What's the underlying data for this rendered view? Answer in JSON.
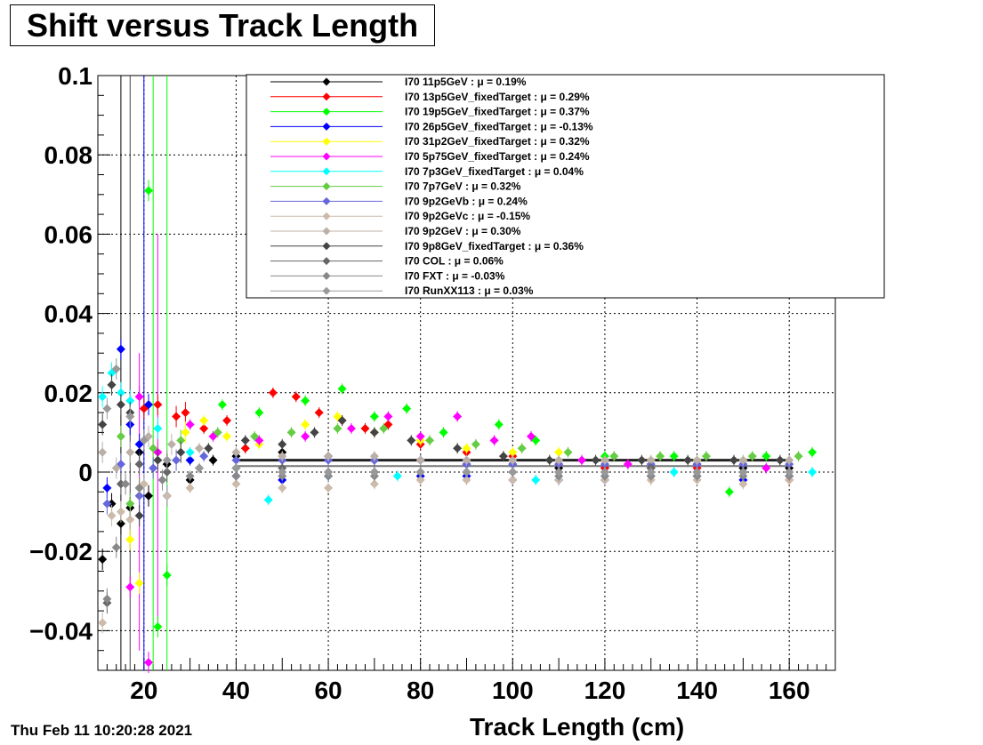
{
  "chart_data": {
    "type": "scatter",
    "title": "Shift versus Track Length",
    "xlabel": "Track Length (cm)",
    "ylabel": "",
    "xlim": [
      10,
      170
    ],
    "ylim": [
      -0.05,
      0.1
    ],
    "x_ticks": [
      20,
      40,
      60,
      80,
      100,
      120,
      140,
      160
    ],
    "y_ticks": [
      -0.04,
      -0.02,
      0,
      0.02,
      0.04,
      0.06,
      0.08,
      0.1
    ],
    "y_tick_labels": [
      "−0.04",
      "−0.02",
      "0",
      "0.02",
      "0.04",
      "0.06",
      "0.08",
      "0.1"
    ],
    "grid": true,
    "legend_placement": "top-right",
    "series": [
      {
        "name": "I70  11p5GeV : μ =  0.19%",
        "color": "#000000",
        "x": [
          11,
          13,
          15,
          17,
          19,
          21,
          25,
          30,
          35,
          40,
          50,
          60,
          70,
          80,
          90,
          100,
          110,
          120,
          130,
          140,
          150,
          160
        ],
        "y": [
          -0.022,
          -0.008,
          -0.013,
          -0.009,
          0.005,
          -0.006,
          0.002,
          -0.002,
          0.003,
          0.004,
          0.005,
          0.004,
          0.003,
          0.003,
          0.002,
          0.002,
          0.001,
          0.001,
          0.001,
          0.002,
          0.001,
          0.001
        ]
      },
      {
        "name": "I70  13p5GeV_fixedTarget : μ =  0.29%",
        "color": "#ff0000",
        "x": [
          20,
          23,
          27,
          29,
          33,
          38,
          42,
          48,
          53,
          58,
          63,
          68,
          73,
          80,
          90,
          100,
          110,
          120,
          130,
          140,
          150,
          160
        ],
        "y": [
          0.016,
          0.017,
          0.014,
          0.015,
          0.011,
          0.013,
          0.006,
          0.02,
          0.019,
          0.015,
          0.013,
          0.011,
          0.012,
          0.007,
          0.005,
          0.004,
          0.002,
          0.001,
          0.001,
          0.001,
          0.0,
          -0.002
        ]
      },
      {
        "name": "I70  19p5GeV_fixedTarget : μ =  0.37%",
        "color": "#00ff00",
        "x": [
          21,
          23,
          25,
          37,
          45,
          55,
          63,
          70,
          77,
          85,
          97,
          105,
          120,
          135,
          147,
          155,
          165
        ],
        "y": [
          0.071,
          -0.039,
          -0.026,
          0.017,
          0.015,
          0.018,
          0.021,
          0.014,
          0.016,
          0.01,
          0.012,
          0.008,
          0.004,
          0.004,
          -0.005,
          0.004,
          0.005
        ]
      },
      {
        "name": "I70  26p5GeV_fixedTarget : μ = -0.13%",
        "color": "#0000ff",
        "x": [
          12,
          15,
          17,
          19,
          21,
          25,
          30,
          40,
          50,
          60,
          70,
          80,
          90,
          100,
          110,
          120,
          130,
          140,
          150,
          160
        ],
        "y": [
          -0.004,
          0.031,
          0.012,
          0.007,
          0.017,
          -0.006,
          0.003,
          -0.001,
          -0.002,
          -0.001,
          0.0,
          -0.001,
          -0.001,
          -0.002,
          -0.002,
          -0.002,
          -0.001,
          -0.001,
          -0.002,
          -0.001
        ]
      },
      {
        "name": "I70  31p2GeV_fixedTarget : μ =  0.32%",
        "color": "#ffff00",
        "x": [
          17,
          19,
          23,
          29,
          33,
          38,
          45,
          55,
          62,
          70,
          80,
          90,
          100,
          110,
          120,
          130,
          140,
          150,
          160
        ],
        "y": [
          -0.017,
          -0.028,
          0.005,
          0.01,
          0.013,
          0.009,
          0.007,
          0.012,
          0.014,
          0.01,
          0.008,
          0.006,
          0.005,
          0.005,
          0.003,
          0.003,
          0.003,
          0.003,
          0.002
        ]
      },
      {
        "name": "I70  5p75GeV_fixedTarget : μ =  0.24%",
        "color": "#ff00ff",
        "x": [
          17,
          19,
          21,
          23,
          30,
          35,
          45,
          55,
          65,
          73,
          80,
          88,
          96,
          104,
          115,
          125,
          140,
          155
        ],
        "y": [
          -0.029,
          0.019,
          -0.048,
          0.005,
          0.012,
          0.009,
          0.008,
          0.009,
          0.011,
          0.014,
          0.009,
          0.014,
          0.008,
          0.009,
          0.003,
          0.002,
          0.002,
          0.001
        ]
      },
      {
        "name": "I70  7p3GeV_fixedTarget : μ =  0.04%",
        "color": "#00ffff",
        "x": [
          11,
          13,
          15,
          17,
          23,
          30,
          40,
          47,
          60,
          75,
          90,
          105,
          120,
          135,
          150,
          165
        ],
        "y": [
          0.019,
          0.025,
          0.02,
          0.018,
          0.011,
          0.005,
          0.001,
          -0.007,
          -0.001,
          -0.001,
          0.0,
          -0.002,
          -0.001,
          0.0,
          0.0,
          0.0
        ]
      },
      {
        "name": "I70  7p7GeV : μ =  0.32%",
        "color": "#66cc44",
        "x": [
          13,
          15,
          17,
          19,
          22,
          28,
          36,
          44,
          52,
          62,
          72,
          82,
          92,
          102,
          112,
          122,
          132,
          142,
          152,
          162
        ],
        "y": [
          0.022,
          0.009,
          -0.008,
          -0.004,
          0.006,
          0.008,
          0.01,
          0.009,
          0.01,
          0.011,
          0.011,
          0.008,
          0.007,
          0.006,
          0.005,
          0.004,
          0.004,
          0.004,
          0.004,
          0.004
        ]
      },
      {
        "name": "I70  9p2GeVb : μ =  0.24%",
        "color": "#6666dd",
        "x": [
          12,
          15,
          19,
          22,
          27,
          33,
          40,
          50,
          60,
          70,
          80,
          90,
          100,
          110,
          120,
          130,
          140,
          150,
          160
        ],
        "y": [
          -0.008,
          0.002,
          -0.006,
          0.001,
          0.003,
          0.004,
          0.003,
          0.003,
          0.003,
          0.003,
          0.003,
          0.002,
          0.002,
          0.002,
          0.002,
          0.002,
          0.002,
          0.002,
          0.002
        ]
      },
      {
        "name": "I70  9p2GeVc : μ = -0.15%",
        "color": "#ccbbaa",
        "x": [
          11,
          13,
          15,
          17,
          20,
          25,
          30,
          40,
          50,
          60,
          70,
          80,
          90,
          100,
          110,
          120,
          130,
          140,
          150,
          160
        ],
        "y": [
          -0.038,
          -0.011,
          -0.01,
          -0.012,
          -0.003,
          -0.006,
          -0.004,
          -0.003,
          -0.004,
          -0.004,
          -0.003,
          -0.002,
          -0.002,
          -0.002,
          -0.002,
          -0.002,
          -0.002,
          -0.002,
          -0.003,
          -0.002
        ]
      },
      {
        "name": "I70  9p2GeV : μ =  0.30%",
        "color": "#bbb0a8",
        "x": [
          11,
          14,
          17,
          21,
          26,
          32,
          40,
          50,
          60,
          70,
          80,
          90,
          100,
          110,
          120,
          130,
          140,
          150,
          160
        ],
        "y": [
          0.005,
          0.001,
          0.005,
          0.009,
          0.007,
          0.006,
          0.005,
          0.004,
          0.004,
          0.004,
          0.003,
          0.003,
          0.003,
          0.003,
          0.003,
          0.003,
          0.003,
          0.003,
          0.003
        ]
      },
      {
        "name": "I70  9p8GeV_fixedTarget : μ =  0.36%",
        "color": "#444444",
        "x": [
          11,
          13,
          15,
          17,
          19,
          23,
          28,
          34,
          42,
          50,
          57,
          63,
          70,
          78,
          88,
          98,
          108,
          118,
          128,
          138,
          148,
          158
        ],
        "y": [
          0.012,
          0.022,
          0.017,
          0.015,
          -0.011,
          0.003,
          0.005,
          0.006,
          0.008,
          0.007,
          0.01,
          0.013,
          0.01,
          0.008,
          0.006,
          0.004,
          0.003,
          0.003,
          0.003,
          0.003,
          0.003,
          0.003
        ]
      },
      {
        "name": "I70  COL : μ =  0.06%",
        "color": "#666666",
        "x": [
          12,
          15,
          19,
          25,
          32,
          40,
          50,
          60,
          70,
          80,
          90,
          100,
          110,
          120,
          130,
          140,
          150,
          160
        ],
        "y": [
          -0.033,
          -0.003,
          0.002,
          0.0,
          0.001,
          0.001,
          0.001,
          0.0,
          0.0,
          0.0,
          0.0,
          0.0,
          0.0,
          0.0,
          0.001,
          0.0,
          0.0,
          0.0
        ]
      },
      {
        "name": "I70  FXT : μ = -0.03%",
        "color": "#888888",
        "x": [
          12,
          14,
          16,
          19,
          24,
          30,
          40,
          50,
          60,
          70,
          80,
          90,
          100,
          110,
          120,
          130,
          140,
          150,
          160
        ],
        "y": [
          -0.032,
          -0.019,
          -0.003,
          -0.004,
          -0.002,
          -0.001,
          -0.001,
          -0.001,
          -0.001,
          -0.001,
          0.0,
          0.0,
          0.0,
          -0.001,
          -0.001,
          -0.001,
          -0.001,
          -0.001,
          -0.001
        ]
      },
      {
        "name": "I70  RunXX113 : μ =  0.03%",
        "color": "#999999",
        "x": [
          12,
          14,
          17,
          20,
          25,
          32,
          40,
          50,
          60,
          70,
          80,
          90,
          100,
          110,
          120,
          130,
          140,
          150,
          160
        ],
        "y": [
          0.016,
          0.026,
          0.014,
          0.008,
          0.003,
          0.001,
          0.001,
          0.0,
          0.0,
          0.0,
          0.0,
          0.0,
          0.0,
          0.0,
          0.0,
          0.0,
          0.0,
          0.0,
          0.0
        ]
      }
    ]
  },
  "timestamp": "Thu Feb 11 10:20:28 2021"
}
